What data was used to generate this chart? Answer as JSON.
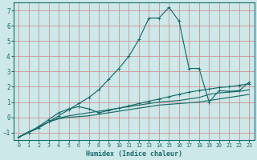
{
  "xlabel": "Humidex (Indice chaleur)",
  "bg_color": "#cce8e8",
  "grid_color": "#b0d0d0",
  "line_color": "#1a6b6b",
  "xlim": [
    -0.5,
    23.5
  ],
  "ylim": [
    -1.5,
    7.5
  ],
  "xticks": [
    0,
    1,
    2,
    3,
    4,
    5,
    6,
    7,
    8,
    9,
    10,
    11,
    12,
    13,
    14,
    15,
    16,
    17,
    18,
    19,
    20,
    21,
    22,
    23
  ],
  "yticks": [
    -1,
    0,
    1,
    2,
    3,
    4,
    5,
    6,
    7
  ],
  "line_peak_x": [
    0,
    1,
    2,
    3,
    4,
    5,
    6,
    7,
    8,
    9,
    10,
    11,
    12,
    13,
    14,
    15,
    16,
    17,
    18,
    19,
    20,
    21,
    22,
    23
  ],
  "line_peak_y": [
    -1.3,
    -1.0,
    -0.7,
    -0.3,
    0.1,
    0.5,
    0.9,
    1.3,
    1.8,
    2.5,
    3.2,
    4.0,
    5.1,
    6.5,
    6.5,
    7.2,
    6.3,
    3.2,
    3.2,
    1.0,
    1.75,
    1.7,
    1.75,
    2.3
  ],
  "line_mid_x": [
    0,
    1,
    2,
    3,
    4,
    5,
    6,
    7,
    8,
    9,
    10,
    11,
    12,
    13,
    14,
    15,
    16,
    17,
    18,
    19,
    20,
    21,
    22,
    23
  ],
  "line_mid_y": [
    -1.3,
    -1.0,
    -0.6,
    -0.15,
    0.3,
    0.55,
    0.7,
    0.55,
    0.3,
    0.45,
    0.6,
    0.75,
    0.9,
    1.05,
    1.2,
    1.35,
    1.5,
    1.65,
    1.75,
    1.85,
    1.95,
    2.0,
    2.1,
    2.2
  ],
  "line_low1_x": [
    0,
    1,
    2,
    3,
    4,
    5,
    6,
    7,
    8,
    9,
    10,
    11,
    12,
    13,
    14,
    15,
    16,
    17,
    18,
    19,
    20,
    21,
    22,
    23
  ],
  "line_low1_y": [
    -1.3,
    -0.95,
    -0.65,
    -0.3,
    -0.05,
    0.1,
    0.2,
    0.3,
    0.4,
    0.5,
    0.6,
    0.7,
    0.8,
    0.9,
    1.0,
    1.05,
    1.1,
    1.2,
    1.3,
    1.5,
    1.6,
    1.65,
    1.7,
    1.8
  ],
  "line_low2_x": [
    0,
    1,
    2,
    3,
    4,
    5,
    6,
    7,
    8,
    9,
    10,
    11,
    12,
    13,
    14,
    15,
    16,
    17,
    18,
    19,
    20,
    21,
    22,
    23
  ],
  "line_low2_y": [
    -1.3,
    -0.95,
    -0.65,
    -0.3,
    -0.1,
    0.0,
    0.05,
    0.1,
    0.2,
    0.3,
    0.4,
    0.5,
    0.6,
    0.7,
    0.8,
    0.85,
    0.9,
    0.95,
    1.0,
    1.1,
    1.2,
    1.3,
    1.4,
    1.5
  ]
}
